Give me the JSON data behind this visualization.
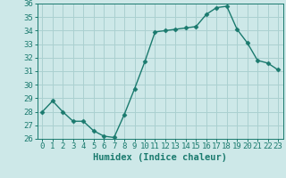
{
  "x": [
    0,
    1,
    2,
    3,
    4,
    5,
    6,
    7,
    8,
    9,
    10,
    11,
    12,
    13,
    14,
    15,
    16,
    17,
    18,
    19,
    20,
    21,
    22,
    23
  ],
  "y": [
    28.0,
    28.8,
    28.0,
    27.3,
    27.3,
    26.6,
    26.2,
    26.1,
    27.8,
    29.7,
    31.7,
    33.9,
    34.0,
    34.1,
    34.2,
    34.3,
    35.2,
    35.7,
    35.8,
    34.1,
    33.1,
    31.8,
    31.6,
    31.1
  ],
  "xlabel": "Humidex (Indice chaleur)",
  "xlim": [
    -0.5,
    23.5
  ],
  "ylim": [
    26,
    36
  ],
  "yticks": [
    26,
    27,
    28,
    29,
    30,
    31,
    32,
    33,
    34,
    35,
    36
  ],
  "xticks": [
    0,
    1,
    2,
    3,
    4,
    5,
    6,
    7,
    8,
    9,
    10,
    11,
    12,
    13,
    14,
    15,
    16,
    17,
    18,
    19,
    20,
    21,
    22,
    23
  ],
  "line_color": "#1a7a6e",
  "marker": "D",
  "marker_size": 2.5,
  "bg_color": "#cde8e8",
  "grid_color": "#aad0d0",
  "axes_color": "#1a7a6e",
  "label_fontsize": 7.5,
  "tick_fontsize": 6.5
}
